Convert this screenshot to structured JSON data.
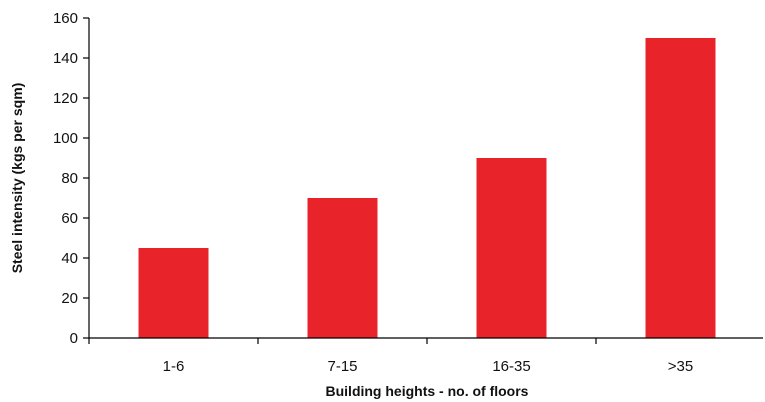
{
  "chart_data": {
    "type": "bar",
    "title": "",
    "xlabel": "Building heights - no. of floors",
    "ylabel": "Steel intensity (kgs per sqm)",
    "categories": [
      "1-6",
      "7-15",
      "16-35",
      ">35"
    ],
    "values": [
      45,
      70,
      90,
      150
    ],
    "ylim": [
      0,
      160
    ],
    "yticks": [
      0,
      20,
      40,
      60,
      80,
      100,
      120,
      140,
      160
    ],
    "grid": false,
    "legend": "none",
    "bar_color": "#e8232a"
  }
}
